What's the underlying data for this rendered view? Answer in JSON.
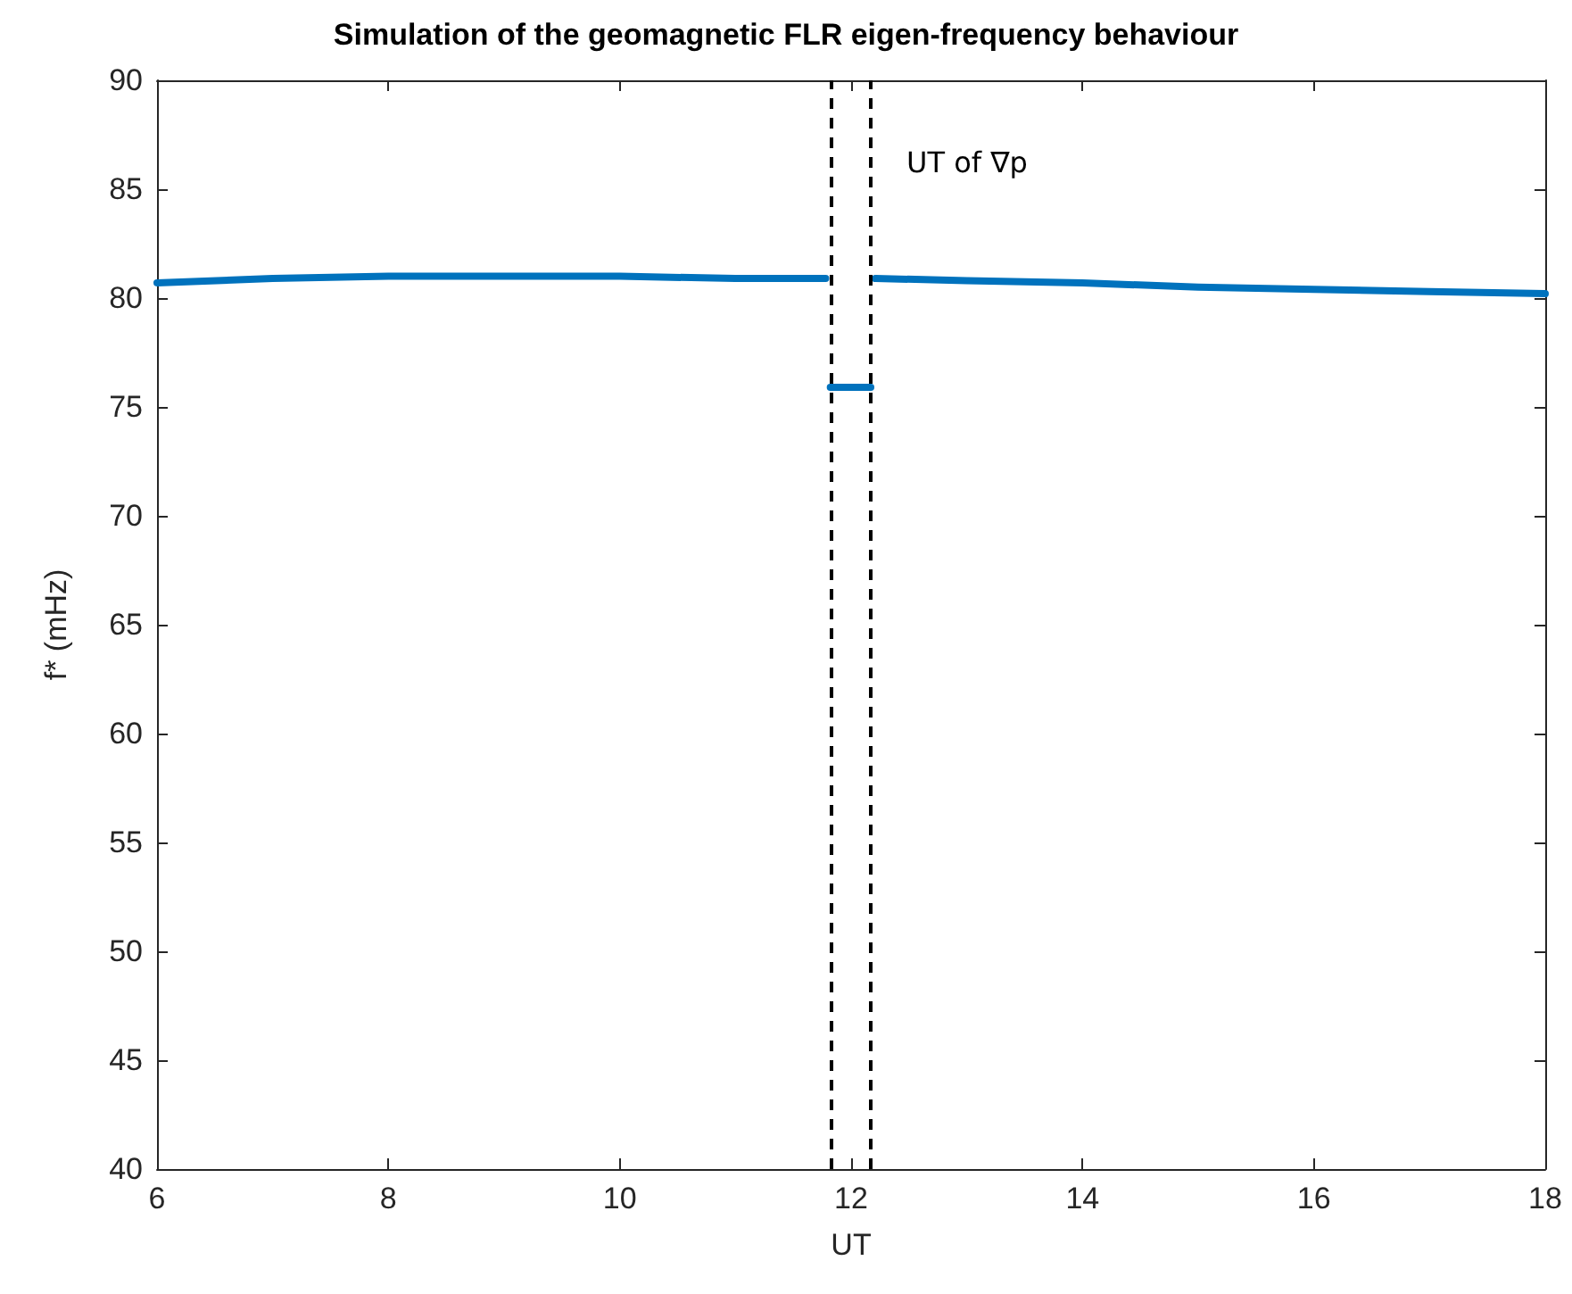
{
  "chart_data": {
    "type": "line",
    "title": "Simulation of the geomagnetic FLR eigen-frequency behaviour",
    "xlabel": "UT",
    "ylabel": "f* (mHz)",
    "series": [
      {
        "color": "#0072bd",
        "x": [
          6,
          7,
          8,
          9,
          10,
          11,
          11.78,
          11.8,
          11.82,
          12.17,
          12.19,
          12.21,
          13,
          14,
          15,
          16,
          17,
          18
        ],
        "values": [
          80.7,
          80.9,
          81.0,
          81.0,
          81.0,
          80.9,
          80.9,
          null,
          75.9,
          75.9,
          null,
          80.9,
          80.8,
          80.7,
          80.5,
          80.4,
          80.3,
          80.2
        ]
      }
    ],
    "xlim": [
      6,
      18
    ],
    "xticks": [
      6,
      8,
      10,
      12,
      14,
      16,
      18
    ],
    "ylim": [
      40,
      90
    ],
    "yticks": [
      40,
      45,
      50,
      55,
      60,
      65,
      70,
      75,
      80,
      85,
      90
    ],
    "ref_lines": [
      {
        "axis": "x",
        "value": 11.82,
        "color": "#000000",
        "line_style": "dashed"
      },
      {
        "axis": "x",
        "value": 12.17,
        "label": "UT of ∇p",
        "color": "#000000",
        "line_style": "dashed"
      }
    ],
    "grid": false,
    "marker": "none",
    "line_style": "solid"
  }
}
